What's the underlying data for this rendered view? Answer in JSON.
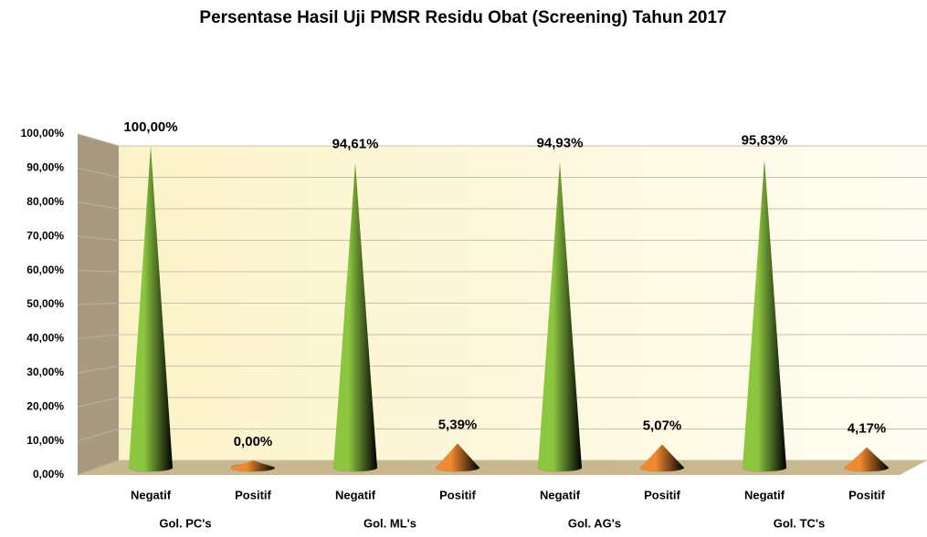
{
  "chart_data": {
    "type": "cone",
    "title": "Persentase Hasil Uji PMSR Residu Obat (Screening) Tahun 2017",
    "categories": [
      "Negatif",
      "Positif",
      "Negatif",
      "Positif",
      "Negatif",
      "Positif",
      "Negatif",
      "Positif"
    ],
    "groups": [
      "Gol. PC's",
      "Gol. ML's",
      "Gol. AG's",
      "Gol. TC's"
    ],
    "values": [
      100,
      0,
      94.61,
      5.39,
      94.93,
      5.07,
      95.83,
      4.17
    ],
    "value_labels": [
      "100,00%",
      "0,00%",
      "94,61%",
      "5,39%",
      "94,93%",
      "5,07%",
      "95,83%",
      "4,17%"
    ],
    "point_colors": [
      "#8cc63f",
      "#f08a30",
      "#8cc63f",
      "#f08a30",
      "#8cc63f",
      "#f08a30",
      "#8cc63f",
      "#f08a30"
    ],
    "ylim": [
      0,
      100
    ],
    "yticks": [
      {
        "value": 0,
        "label": "0,00%"
      },
      {
        "value": 10,
        "label": "10,00%"
      },
      {
        "value": 20,
        "label": "20,00%"
      },
      {
        "value": 30,
        "label": "30,00%"
      },
      {
        "value": 40,
        "label": "40,00%"
      },
      {
        "value": 50,
        "label": "50,00%"
      },
      {
        "value": 60,
        "label": "60,00%"
      },
      {
        "value": 70,
        "label": "70,00%"
      },
      {
        "value": 80,
        "label": "80,00%"
      },
      {
        "value": 90,
        "label": "90,00%"
      },
      {
        "value": 100,
        "label": "100,00%"
      }
    ],
    "grid": true
  }
}
